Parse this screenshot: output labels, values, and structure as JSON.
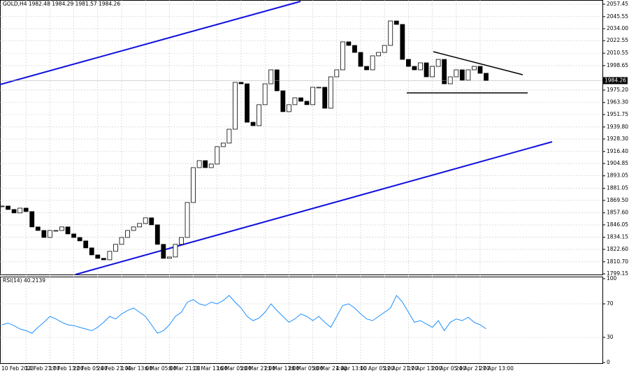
{
  "chart_data": [
    {
      "type": "candlestick",
      "symbol": "GOLD,H4",
      "open": 1982.48,
      "high": 1984.29,
      "low": 1981.57,
      "close": 1984.26,
      "categories": [
        "10 Feb 2023",
        null,
        null,
        null,
        "14 Feb 21:00",
        null,
        null,
        null,
        "17 Feb 13:00",
        null,
        null,
        null,
        "22 Feb 05:00",
        null,
        null,
        null,
        "24 Feb 21:00",
        null,
        null,
        null,
        "1 Mar 13:00",
        null,
        null,
        null,
        "6 Mar 05:00",
        null,
        null,
        null,
        "8 Mar 21:00",
        null,
        null,
        null,
        "13 Mar 13:00",
        null,
        null,
        null,
        "16 Mar 05:00",
        null,
        null,
        null,
        "20 Mar 21:00",
        null,
        null,
        null,
        "23 Mar 13:00",
        null,
        null,
        null,
        "28 Mar 05:00",
        null,
        null,
        null,
        "30 Mar 21:00",
        null,
        null,
        null,
        "4 Apr 13:00",
        null,
        null,
        null,
        "10 Apr 05:00",
        null,
        null,
        null,
        "12 Apr 21:00",
        null,
        null,
        null,
        "17 Apr 13:00",
        null,
        null,
        null,
        "20 Apr 05:00",
        null,
        null,
        null,
        "24 Apr 21:00",
        null,
        null,
        null,
        "27 Apr 13:00",
        null
      ],
      "values": [
        1864.1,
        1860.8,
        1857.5,
        1862.1,
        1858.8,
        1844.1,
        1840.7,
        1834.0,
        1840.7,
        1840.7,
        1844.1,
        1837.4,
        1834.0,
        1830.7,
        1824.0,
        1817.3,
        1814.0,
        1812.6,
        1820.7,
        1827.4,
        1834.0,
        1840.7,
        1844.1,
        1847.4,
        1852.8,
        1846.1,
        1827.4,
        1814.0,
        1815.3,
        1827.4,
        1834.0,
        1867.5,
        1900.9,
        1907.6,
        1900.9,
        1904.3,
        1921.0,
        1924.4,
        1937.7,
        1982.6,
        1981.2,
        1944.4,
        1941.1,
        1961.2,
        1981.2,
        1994.6,
        1974.5,
        1954.5,
        1961.2,
        1967.8,
        1964.5,
        1961.2,
        1977.9,
        1977.9,
        1957.8,
        1987.9,
        1994.6,
        2021.4,
        2018.0,
        2011.3,
        1997.9,
        1994.6,
        2008.0,
        2011.3,
        2018.0,
        2041.4,
        2038.1,
        2004.6,
        1997.9,
        1994.6,
        2001.3,
        1987.9,
        1997.9,
        2004.6,
        1981.2,
        1987.9,
        1994.6,
        1984.6,
        1994.6,
        1997.9,
        1991.3,
        1984.26
      ],
      "ylim": [
        1798.5,
        2061.5
      ],
      "yticks": [
        2057.45,
        2045.55,
        {
          "value": 2034,
          "label": "2034.00"
        },
        2022.55,
        2010.55,
        1998.65,
        {
          "value": 1975.2,
          "label": "1975.20"
        },
        {
          "value": 1963.3,
          "label": "1963.30"
        },
        1951.75,
        {
          "value": 1939.8,
          "label": "1939.80"
        },
        {
          "value": 1928.3,
          "label": "1928.30"
        },
        {
          "value": 1916.4,
          "label": "1916.40"
        },
        1904.85,
        1893.05,
        1881.05,
        {
          "value": 1869.5,
          "label": "1869.50"
        },
        {
          "value": 1857.6,
          "label": "1857.60"
        },
        1846.05,
        1834.15,
        {
          "value": 1822.6,
          "label": "1822.60"
        },
        {
          "value": 1810.7,
          "label": "1810.70"
        },
        1799.15
      ],
      "grid": true
    },
    {
      "type": "line",
      "name": "RSI(14)",
      "color": "#1e90ff",
      "values": [
        45,
        47,
        44,
        40,
        38,
        35,
        42,
        48,
        55,
        52,
        48,
        45,
        44,
        42,
        40,
        38,
        42,
        48,
        55,
        52,
        58,
        62,
        65,
        60,
        55,
        45,
        35,
        38,
        45,
        55,
        60,
        72,
        75,
        70,
        68,
        72,
        70,
        74,
        80,
        72,
        65,
        55,
        50,
        53,
        60,
        70,
        62,
        55,
        48,
        52,
        58,
        55,
        50,
        55,
        48,
        42,
        55,
        68,
        70,
        65,
        58,
        52,
        50,
        55,
        60,
        65,
        80,
        72,
        60,
        48,
        50,
        46,
        42,
        50,
        38,
        48,
        52,
        50,
        54,
        48,
        45,
        40.2139
      ],
      "ylim": [
        0,
        100
      ],
      "yticks": [
        100,
        70,
        30,
        0
      ],
      "grid": true
    }
  ]
}
